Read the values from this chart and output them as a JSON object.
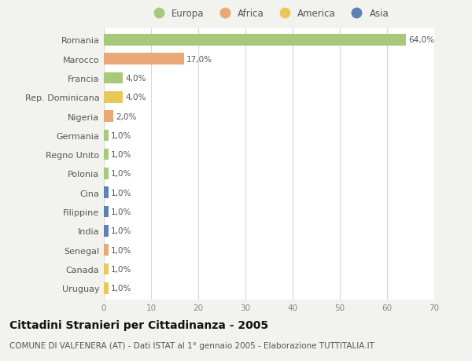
{
  "categories": [
    "Romania",
    "Marocco",
    "Francia",
    "Rep. Dominicana",
    "Nigeria",
    "Germania",
    "Regno Unito",
    "Polonia",
    "Cina",
    "Filippine",
    "India",
    "Senegal",
    "Canada",
    "Uruguay"
  ],
  "values": [
    64.0,
    17.0,
    4.0,
    4.0,
    2.0,
    1.0,
    1.0,
    1.0,
    1.0,
    1.0,
    1.0,
    1.0,
    1.0,
    1.0
  ],
  "bar_colors": [
    "#a8c87a",
    "#e8a878",
    "#a8c87a",
    "#e8c858",
    "#e8a878",
    "#a8c87a",
    "#a8c87a",
    "#a8c87a",
    "#6080b8",
    "#6080b8",
    "#6080b8",
    "#e8a878",
    "#e8c858",
    "#e8c858"
  ],
  "labels": [
    "64,0%",
    "17,0%",
    "4,0%",
    "4,0%",
    "2,0%",
    "1,0%",
    "1,0%",
    "1,0%",
    "1,0%",
    "1,0%",
    "1,0%",
    "1,0%",
    "1,0%",
    "1,0%"
  ],
  "xlim": [
    0,
    70
  ],
  "xticks": [
    0,
    10,
    20,
    30,
    40,
    50,
    60,
    70
  ],
  "legend_labels": [
    "Europa",
    "Africa",
    "America",
    "Asia"
  ],
  "legend_colors": [
    "#a8c87a",
    "#e8a878",
    "#e8c858",
    "#6080b8"
  ],
  "title": "Cittadini Stranieri per Cittadinanza - 2005",
  "subtitle": "COMUNE DI VALFENERA (AT) - Dati ISTAT al 1° gennaio 2005 - Elaborazione TUTTITALIA.IT",
  "bg_color": "#f2f2ee",
  "plot_bg_color": "#ffffff",
  "grid_color": "#d8d8d8",
  "title_fontsize": 10,
  "subtitle_fontsize": 7.5,
  "bar_height": 0.6
}
